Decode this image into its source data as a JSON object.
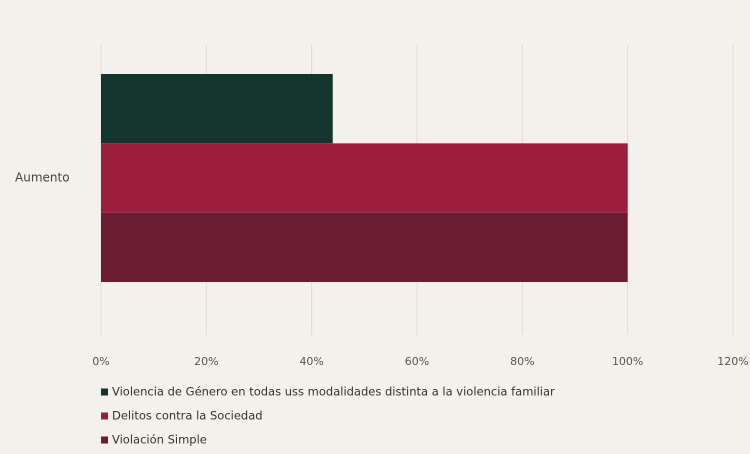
{
  "chart_data": {
    "type": "hbar",
    "categories": [
      "Aumento"
    ],
    "series": [
      {
        "name": "Violencia de Género en todas uss modalidades distinta a la violencia familiar",
        "color": "#12352e",
        "values": [
          44
        ]
      },
      {
        "name": "Delitos contra la Sociedad",
        "color": "#9d1e3c",
        "values": [
          100
        ]
      },
      {
        "name": "Violación Simple",
        "color": "#6a1c30",
        "values": [
          100
        ]
      }
    ],
    "xlim": [
      0,
      120
    ],
    "xticks": [
      {
        "value": 0,
        "label": "0%"
      },
      {
        "value": 20,
        "label": "20%"
      },
      {
        "value": 40,
        "label": "40%"
      },
      {
        "value": 60,
        "label": "60%"
      },
      {
        "value": 80,
        "label": "80%"
      },
      {
        "value": 100,
        "label": "100%"
      },
      {
        "value": 120,
        "label": "120%"
      }
    ],
    "grid": true
  }
}
